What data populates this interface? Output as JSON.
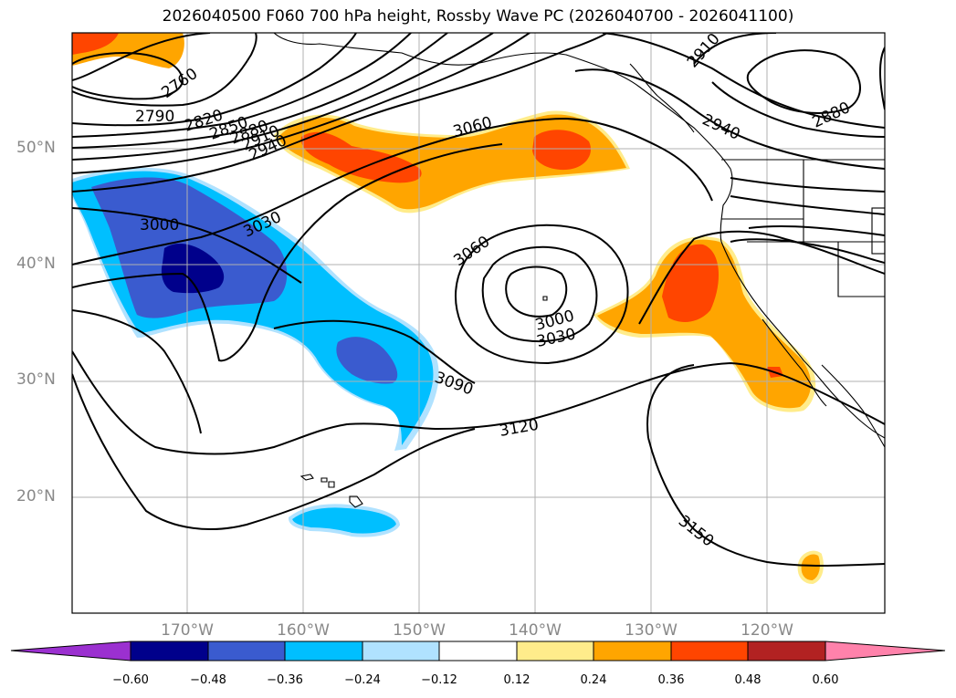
{
  "map": {
    "title": "2026040500 F060 700 hPa height, Rossby Wave PC (2026040700 - 2026041100)",
    "lat_labels": [
      "50°N",
      "40°N",
      "30°N",
      "20°N"
    ],
    "lon_labels": [
      "170°W",
      "160°W",
      "150°W",
      "140°W",
      "130°W",
      "120°W"
    ],
    "contour_labels": [
      "2760",
      "2790",
      "2820",
      "2850",
      "2880",
      "2910",
      "2940",
      "3000",
      "3030",
      "3060",
      "3090",
      "3120",
      "3150",
      "2910",
      "2940",
      "2880",
      "3060",
      "3000",
      "3030"
    ],
    "colorbar": {
      "ticks": [
        "−0.60",
        "−0.48",
        "−0.36",
        "−0.24",
        "−0.12",
        "0.12",
        "0.24",
        "0.36",
        "0.48",
        "0.60"
      ],
      "colors": [
        "#9b30d0",
        "#00008b",
        "#3a5bcf",
        "#00bfff",
        "#b0e2ff",
        "#ffffff",
        "#ffec8b",
        "#ffa500",
        "#ff4500",
        "#b22222",
        "#ff82ab"
      ]
    },
    "fill_colors": {
      "dark_blue": "#00008b",
      "mid_blue": "#3a5bcf",
      "sky_blue": "#00bfff",
      "light_blue": "#b0e2ff",
      "light_yellow": "#ffec8b",
      "orange": "#ffa500",
      "red_orange": "#ff4500"
    }
  }
}
